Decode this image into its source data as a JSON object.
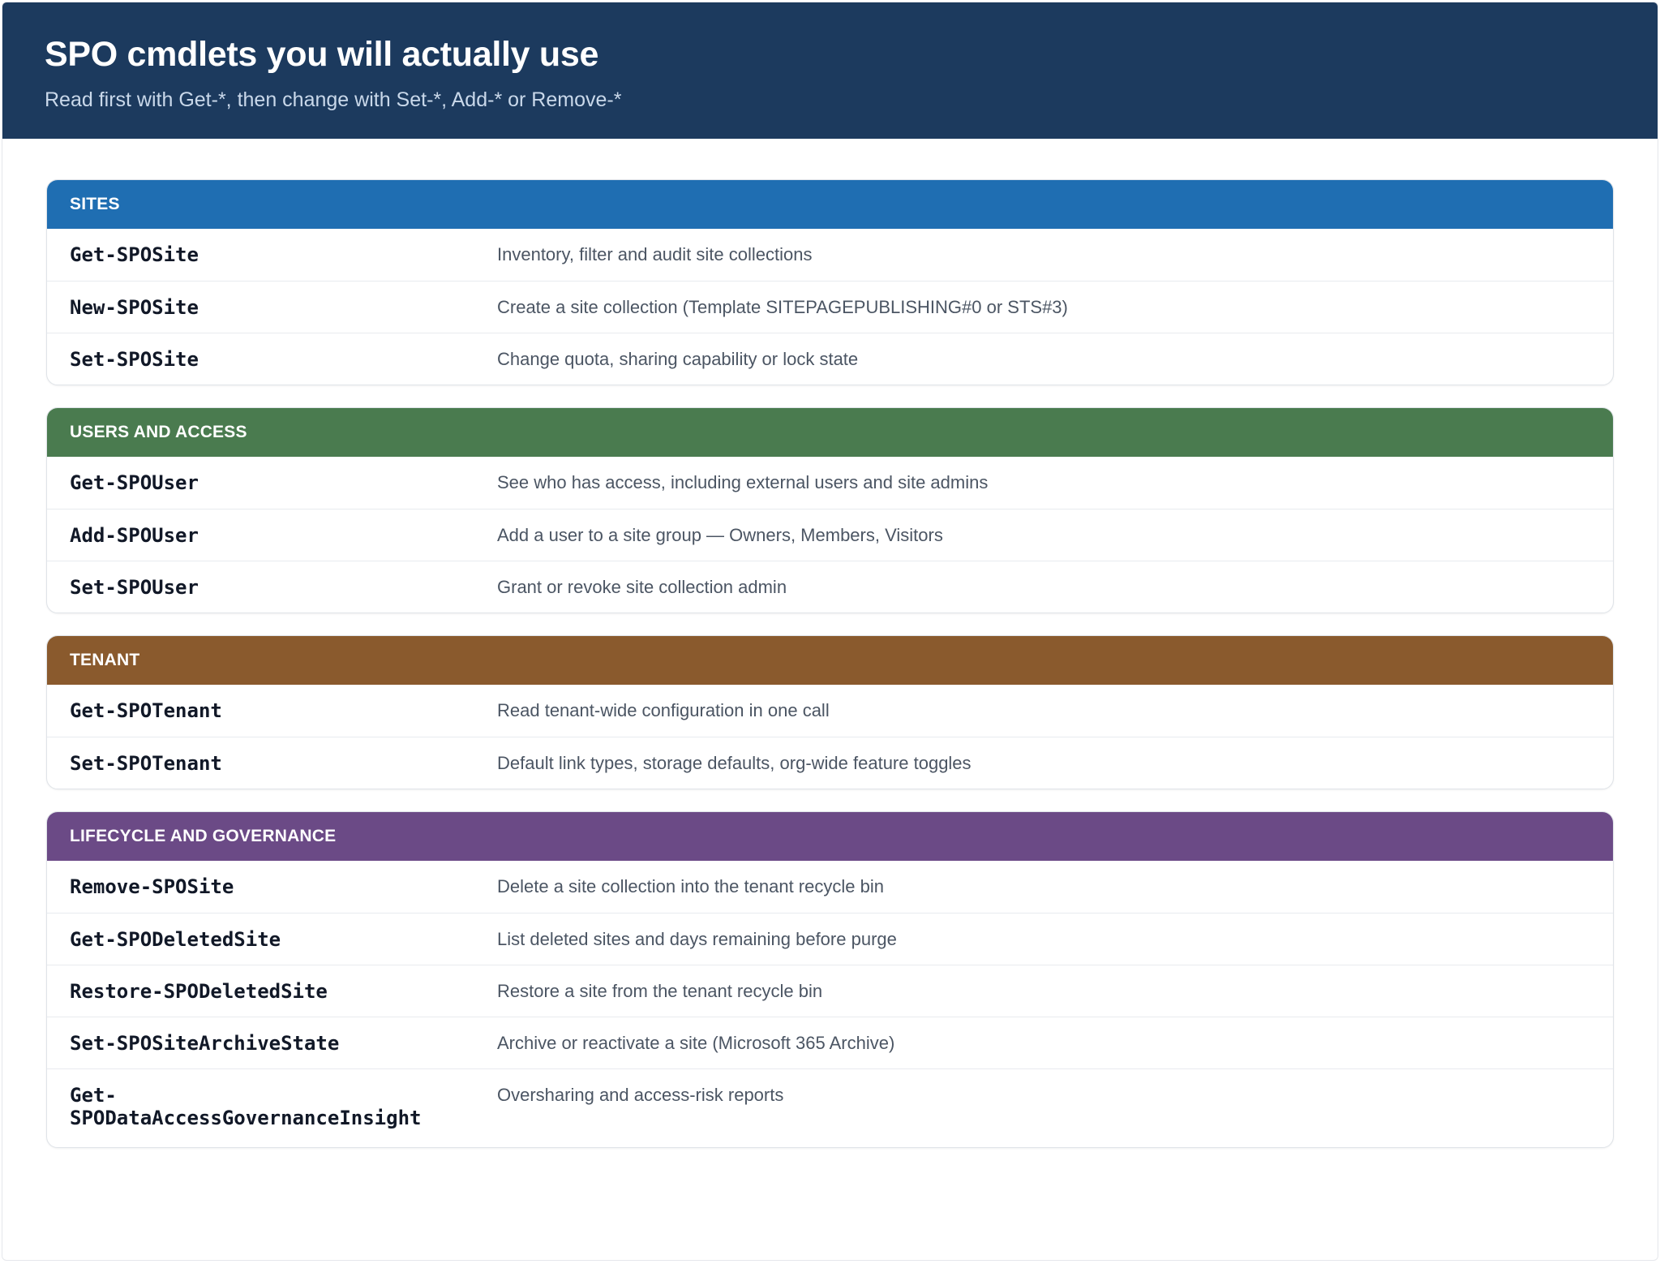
{
  "header": {
    "title": "SPO cmdlets you will actually use",
    "subtitle": "Read first with Get-*, then change with Set-*, Add-* or Remove-*"
  },
  "sections": [
    {
      "title": "SITES",
      "color": "#1f6eb2",
      "rows": [
        {
          "cmd": "Get-SPOSite",
          "desc": "Inventory, filter and audit site collections"
        },
        {
          "cmd": "New-SPOSite",
          "desc": "Create a site collection (Template SITEPAGEPUBLISHING#0 or STS#3)"
        },
        {
          "cmd": "Set-SPOSite",
          "desc": "Change quota, sharing capability or lock state"
        }
      ]
    },
    {
      "title": "USERS AND ACCESS",
      "color": "#4a7b4f",
      "rows": [
        {
          "cmd": "Get-SPOUser",
          "desc": "See who has access, including external users and site admins"
        },
        {
          "cmd": "Add-SPOUser",
          "desc": "Add a user to a site group — Owners, Members, Visitors"
        },
        {
          "cmd": "Set-SPOUser",
          "desc": "Grant or revoke site collection admin"
        }
      ]
    },
    {
      "title": "TENANT",
      "color": "#8a5a2d",
      "rows": [
        {
          "cmd": "Get-SPOTenant",
          "desc": "Read tenant-wide configuration in one call"
        },
        {
          "cmd": "Set-SPOTenant",
          "desc": "Default link types, storage defaults, org-wide feature toggles"
        }
      ]
    },
    {
      "title": "LIFECYCLE AND GOVERNANCE",
      "color": "#6b4a86",
      "rows": [
        {
          "cmd": "Remove-SPOSite",
          "desc": "Delete a site collection into the tenant recycle bin"
        },
        {
          "cmd": "Get-SPODeletedSite",
          "desc": "List deleted sites and days remaining before purge"
        },
        {
          "cmd": "Restore-SPODeletedSite",
          "desc": "Restore a site from the tenant recycle bin"
        },
        {
          "cmd": "Set-SPOSiteArchiveState",
          "desc": "Archive or reactivate a site (Microsoft 365 Archive)"
        },
        {
          "cmd": "Get-SPODataAccessGovernanceInsight",
          "desc": "Oversharing and access-risk reports"
        }
      ]
    }
  ]
}
